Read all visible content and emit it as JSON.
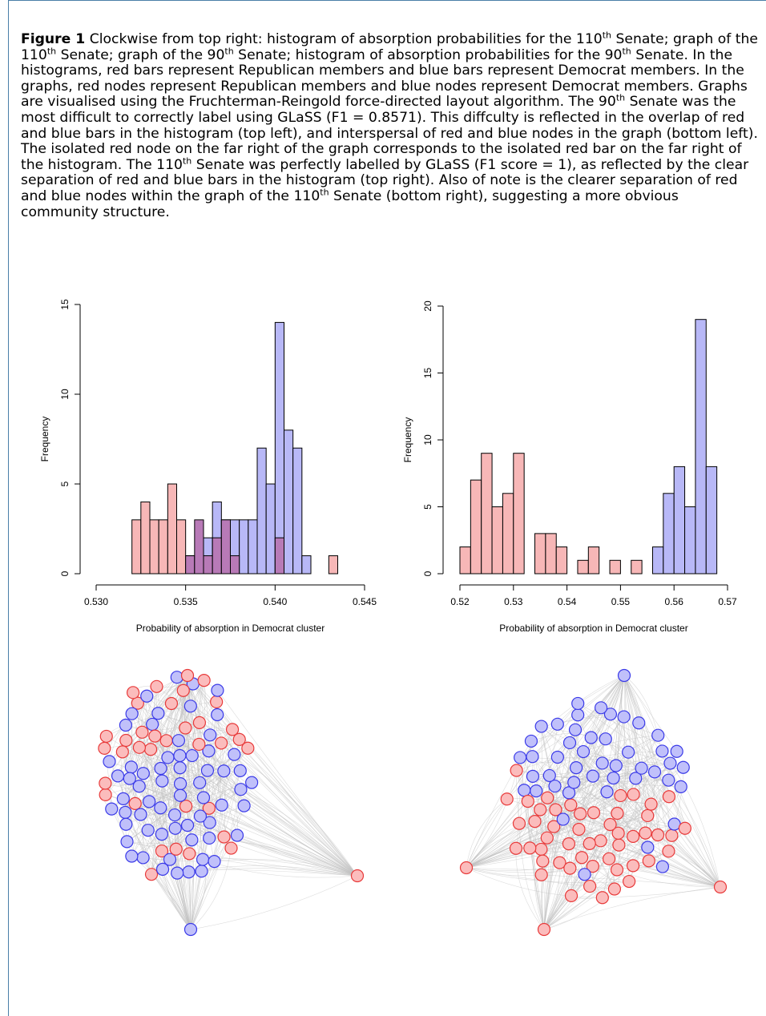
{
  "caption": {
    "label": "Figure 1",
    "parts": [
      {
        "t": " Clockwise from top right: histogram of absorption probabilities for the 110"
      },
      {
        "t": "th",
        "sup": true
      },
      {
        "t": " Senate; graph of the 110"
      },
      {
        "t": "th",
        "sup": true
      },
      {
        "t": " Senate; graph of the 90"
      },
      {
        "t": "th",
        "sup": true
      },
      {
        "t": " Senate; histogram of absorption probabilities for the 90"
      },
      {
        "t": "th",
        "sup": true
      },
      {
        "t": " Senate. In the histograms, red bars represent Republican members and blue bars represent Democrat members. In the graphs, red nodes represent Republican members and blue nodes represent Democrat members. Graphs are visualised using the Fruchterman-Reingold force-directed layout algorithm. The 90"
      },
      {
        "t": "th",
        "sup": true
      },
      {
        "t": " Senate was the most difficult to correctly label using GLaSS (F1 = 0.8571). This diffculty is reflected in the overlap of red and blue bars in the histogram (top left), and interspersal of red and blue nodes in the graph (bottom left). The isolated red node on the far right of the graph corresponds to the isolated red bar on the far right of the histogram. The 110"
      },
      {
        "t": "th",
        "sup": true
      },
      {
        "t": " Senate was perfectly labelled by GLaSS (F1 score = 1), as reflected by the clear separation of red and blue bars in the histogram (top right). Also of note is the clearer separation of red and blue nodes within the graph of the 110"
      },
      {
        "t": "th",
        "sup": true
      },
      {
        "t": " Senate (bottom right), suggesting a more obvious community structure."
      }
    ]
  },
  "colors": {
    "republican_fill": "#f7b7b7",
    "democrat_fill": "#b8b8f7",
    "overlap_fill": "#b87ab7",
    "republican_node": "#fbbcbc",
    "republican_node_stroke": "#e83a3a",
    "democrat_node": "#c0c0fa",
    "democrat_node_stroke": "#3a3ae8",
    "edge": "#c0c0c0"
  },
  "chart_data": [
    {
      "type": "bar",
      "id": "hist_90th",
      "xlabel": "Probability of absorption in Democrat cluster",
      "ylabel": "Frequency",
      "xlim": [
        0.53,
        0.545
      ],
      "ylim": [
        0,
        15
      ],
      "xticks": [
        "0.530",
        "0.535",
        "0.540",
        "0.545"
      ],
      "yticks": [
        "0",
        "5",
        "10",
        "15"
      ],
      "bin_width": 0.0005,
      "series": [
        {
          "party": "republican",
          "bins": [
            [
              0.532,
              3
            ],
            [
              0.5325,
              4
            ],
            [
              0.533,
              3
            ],
            [
              0.5335,
              3
            ],
            [
              0.534,
              5
            ],
            [
              0.5345,
              3
            ],
            [
              0.535,
              1
            ],
            [
              0.5355,
              3
            ],
            [
              0.536,
              1
            ],
            [
              0.5365,
              2
            ],
            [
              0.537,
              3
            ],
            [
              0.5375,
              1
            ],
            [
              0.54,
              2
            ],
            [
              0.543,
              1
            ]
          ]
        },
        {
          "party": "democrat",
          "bins": [
            [
              0.535,
              1
            ],
            [
              0.5355,
              1
            ],
            [
              0.536,
              2
            ],
            [
              0.5365,
              4
            ],
            [
              0.537,
              3
            ],
            [
              0.5375,
              3
            ],
            [
              0.538,
              3
            ],
            [
              0.5385,
              3
            ],
            [
              0.539,
              7
            ],
            [
              0.5395,
              5
            ],
            [
              0.54,
              14
            ],
            [
              0.5405,
              8
            ],
            [
              0.541,
              7
            ],
            [
              0.5415,
              1
            ]
          ]
        }
      ]
    },
    {
      "type": "bar",
      "id": "hist_110th",
      "xlabel": "Probability of absorption in Democrat cluster",
      "ylabel": "Frequency",
      "xlim": [
        0.52,
        0.57
      ],
      "ylim": [
        0,
        20
      ],
      "xticks": [
        "0.52",
        "0.53",
        "0.54",
        "0.55",
        "0.56",
        "0.57"
      ],
      "yticks": [
        "0",
        "5",
        "10",
        "15",
        "20"
      ],
      "bin_width": 0.002,
      "series": [
        {
          "party": "republican",
          "bins": [
            [
              0.52,
              2
            ],
            [
              0.522,
              7
            ],
            [
              0.524,
              9
            ],
            [
              0.526,
              5
            ],
            [
              0.528,
              6
            ],
            [
              0.53,
              9
            ],
            [
              0.534,
              3
            ],
            [
              0.536,
              3
            ],
            [
              0.538,
              2
            ],
            [
              0.542,
              1
            ],
            [
              0.544,
              2
            ],
            [
              0.548,
              1
            ],
            [
              0.552,
              1
            ]
          ]
        },
        {
          "party": "democrat",
          "bins": [
            [
              0.556,
              2
            ],
            [
              0.558,
              6
            ],
            [
              0.56,
              8
            ],
            [
              0.562,
              5
            ],
            [
              0.564,
              19
            ],
            [
              0.566,
              8
            ]
          ]
        }
      ]
    }
  ]
}
